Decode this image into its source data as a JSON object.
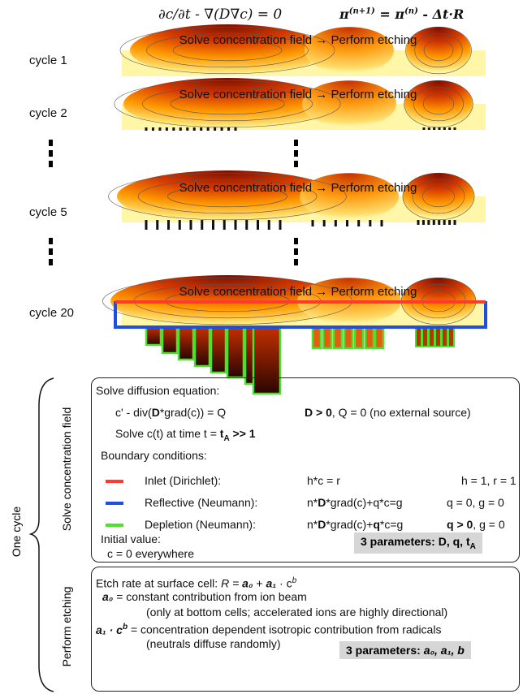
{
  "equations": {
    "diffusion": "∂c/∂t - ∇(D∇c) = 0",
    "update": [
      "π",
      "(n+1)",
      " = π",
      "(n)",
      " - Δt·R"
    ]
  },
  "cycles": [
    {
      "label": "cycle 1",
      "step": "Solve concentration field → Perform etching"
    },
    {
      "label": "cycle 2",
      "step": "Solve concentration field → Perform etching"
    },
    {
      "label": "cycle 5",
      "step": "Solve concentration field → Perform etching"
    },
    {
      "label": "cycle 20",
      "step": "Solve concentration field → Perform etching"
    }
  ],
  "bracket_label": "One cycle",
  "solve": {
    "section": "Solve concentration field",
    "heading": "Solve diffusion equation:",
    "equation": [
      "c' - div(",
      "D",
      "*grad(c)) = Q"
    ],
    "equation_note": [
      "D > 0",
      ", Q = 0  (no external source)"
    ],
    "time": [
      "Solve c(t) at time t = ",
      "t",
      "A",
      " >> 1"
    ],
    "boundary_heading": "Boundary conditions:",
    "boundaries": [
      {
        "name": "Inlet (Dirichlet):",
        "condition": [
          "h*c = r"
        ],
        "values": [
          "h = 1, r = 1"
        ],
        "color": "#ff3b2f"
      },
      {
        "name": "Reflective (Neumann):",
        "condition": [
          "n*",
          "D",
          "*grad(c)+q*c=g"
        ],
        "values": [
          "q = 0, g = 0"
        ],
        "color": "#1f4fe0"
      },
      {
        "name": "Depletion (Neumann):",
        "condition": [
          "n*",
          "D",
          "*grad(c)+",
          "q",
          "*c=g"
        ],
        "values": [
          "q > 0",
          ", g = 0"
        ],
        "color": "#4ee02a"
      }
    ],
    "initial_heading": "Initial value:",
    "initial": "c = 0 everywhere",
    "parameters": [
      "3 parameters: D, q, t",
      "A"
    ]
  },
  "etch": {
    "section": "Perform etching",
    "rate": [
      "Etch rate at surface cell:    ",
      "R = ",
      "a₀",
      " + ",
      "a₁",
      " · c",
      "b"
    ],
    "a0": [
      "a₀",
      "  = constant contribution from ion beam"
    ],
    "a0_note": "(only at bottom cells; accelerated ions are highly directional)",
    "a1": [
      "a₁ · c",
      "b",
      " = concentration dependent isotropic contribution from radicals"
    ],
    "a1_note": "(neutrals diffuse randomly)",
    "parameters": [
      "3 parameters: ",
      "a₀, a₁, b"
    ]
  }
}
